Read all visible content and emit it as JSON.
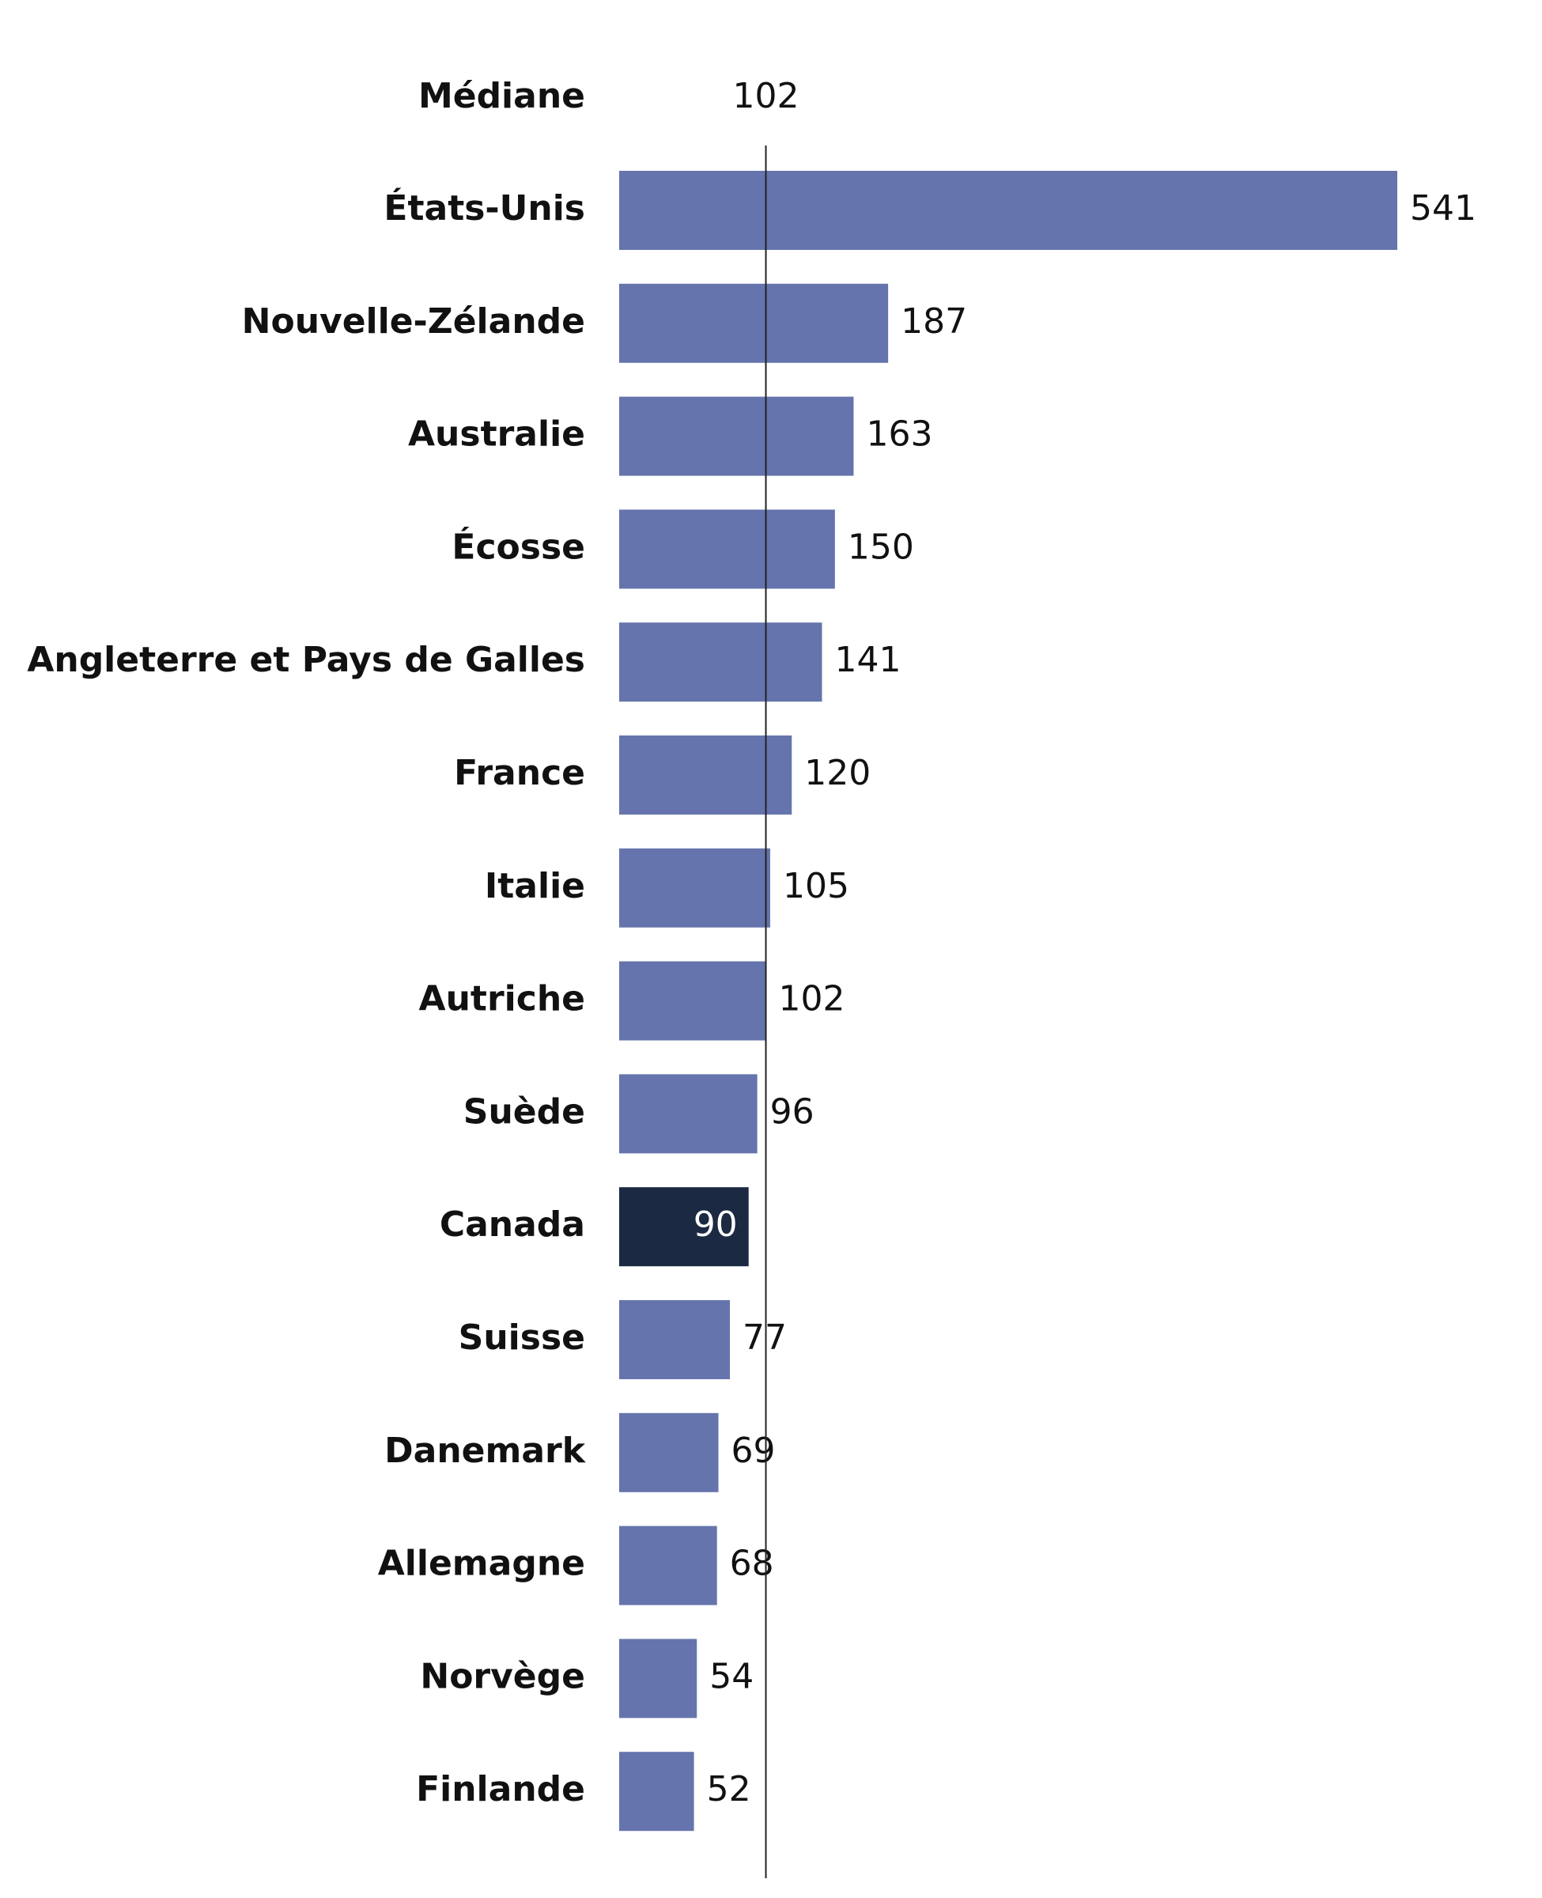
{
  "chart_data": {
    "type": "bar",
    "orientation": "horizontal",
    "categories": [
      "États-Unis",
      "Nouvelle-Zélande",
      "Australie",
      "Écosse",
      "Angleterre et Pays de Galles",
      "France",
      "Italie",
      "Autriche",
      "Suède",
      "Canada",
      "Suisse",
      "Danemark",
      "Allemagne",
      "Norvège",
      "Finlande"
    ],
    "values": [
      541,
      187,
      163,
      150,
      141,
      120,
      105,
      102,
      96,
      90,
      77,
      69,
      68,
      54,
      52
    ],
    "color": "#6574ad",
    "highlight": "Canada",
    "highlight_color": "#1b2942",
    "median": {
      "label": "Médiane",
      "value": 102
    }
  }
}
